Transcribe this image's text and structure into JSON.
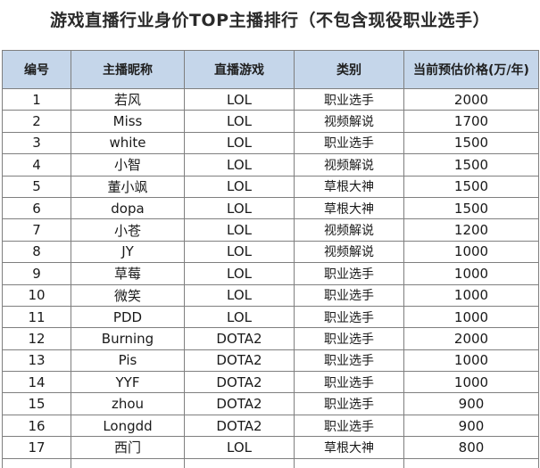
{
  "title": "游戏直播行业身价TOP主播排行（不包含现役职业选手）",
  "table": {
    "headers": [
      "编号",
      "主播昵称",
      "直播游戏",
      "类别",
      "当前预估价格(万/年)"
    ],
    "rows": [
      [
        "1",
        "若风",
        "LOL",
        "职业选手",
        "2000"
      ],
      [
        "2",
        "Miss",
        "LOL",
        "视频解说",
        "1700"
      ],
      [
        "3",
        "white",
        "LOL",
        "职业选手",
        "1500"
      ],
      [
        "4",
        "小智",
        "LOL",
        "视频解说",
        "1500"
      ],
      [
        "5",
        "董小飒",
        "LOL",
        "草根大神",
        "1500"
      ],
      [
        "6",
        "dopa",
        "LOL",
        "草根大神",
        "1500"
      ],
      [
        "7",
        "小苍",
        "LOL",
        "视频解说",
        "1200"
      ],
      [
        "8",
        "JY",
        "LOL",
        "视频解说",
        "1000"
      ],
      [
        "9",
        "草莓",
        "LOL",
        "职业选手",
        "1000"
      ],
      [
        "10",
        "微笑",
        "LOL",
        "职业选手",
        "1000"
      ],
      [
        "11",
        "PDD",
        "LOL",
        "职业选手",
        "1000"
      ],
      [
        "12",
        "Burning",
        "DOTA2",
        "职业选手",
        "2000"
      ],
      [
        "13",
        "Pis",
        "DOTA2",
        "职业选手",
        "1000"
      ],
      [
        "14",
        "YYF",
        "DOTA2",
        "职业选手",
        "1000"
      ],
      [
        "15",
        "zhou",
        "DOTA2",
        "职业选手",
        "900"
      ],
      [
        "16",
        "Longdd",
        "DOTA2",
        "职业选手",
        "900"
      ],
      [
        "17",
        "西门",
        "LOL",
        "草根大神",
        "800"
      ]
    ]
  },
  "colors": {
    "header_bg": "#c5d6ea",
    "grid": "#7f7f7f"
  }
}
